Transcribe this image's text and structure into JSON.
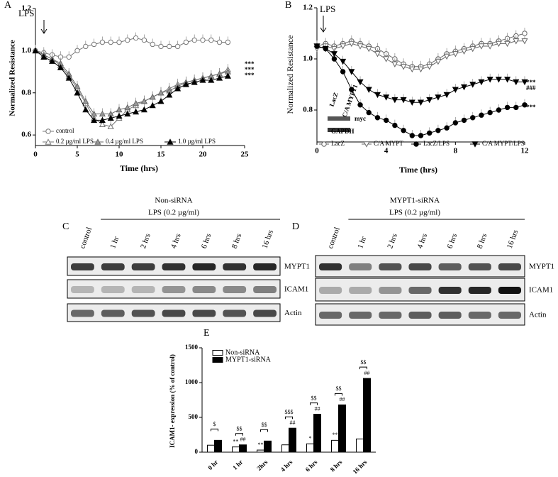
{
  "chart_data": [
    {
      "type": "line",
      "panel": "A",
      "ylabel": "Normalized Resistance",
      "xlabel": "Time (hrs)",
      "xlim": [
        0,
        25
      ],
      "xticks": [
        0,
        5,
        10,
        15,
        20,
        25
      ],
      "ylim": [
        0.55,
        1.2
      ],
      "yticks": [
        0.6,
        0.8,
        {
          "value": 1,
          "label": "1.0"
        },
        1.2
      ],
      "annotations": [
        "LPS",
        "***",
        "***",
        "***"
      ],
      "x": [
        0,
        1,
        2,
        3,
        4,
        5,
        6,
        7,
        8,
        9,
        10,
        11,
        12,
        13,
        14,
        15,
        16,
        17,
        18,
        19,
        20,
        21,
        22,
        23
      ],
      "series": [
        {
          "name": "control",
          "marker": "circle",
          "color": "#777",
          "fill": "#fff",
          "values": [
            1.0,
            0.99,
            0.98,
            0.97,
            0.97,
            1.0,
            1.02,
            1.03,
            1.04,
            1.04,
            1.04,
            1.05,
            1.06,
            1.05,
            1.03,
            1.02,
            1.02,
            1.02,
            1.04,
            1.05,
            1.05,
            1.05,
            1.04,
            1.04
          ]
        },
        {
          "name": "0.2 µg/ml LPS",
          "marker": "triangle",
          "color": "#777",
          "fill": "#fff",
          "values": [
            1.0,
            0.98,
            0.96,
            0.93,
            0.88,
            0.82,
            0.75,
            0.68,
            0.65,
            0.64,
            0.68,
            0.72,
            0.74,
            0.76,
            0.78,
            0.8,
            0.82,
            0.84,
            0.85,
            0.86,
            0.87,
            0.88,
            0.89,
            0.91
          ]
        },
        {
          "name": "0.4 µg/ml LPS",
          "marker": "triangle",
          "color": "#666",
          "fill": "#999",
          "values": [
            1.0,
            0.98,
            0.96,
            0.94,
            0.89,
            0.83,
            0.76,
            0.7,
            0.7,
            0.7,
            0.72,
            0.73,
            0.75,
            0.76,
            0.78,
            0.8,
            0.81,
            0.83,
            0.85,
            0.86,
            0.87,
            0.88,
            0.89,
            0.9
          ]
        },
        {
          "name": "1.0 µg/ml LPS",
          "marker": "triangle",
          "color": "#000",
          "fill": "#000",
          "values": [
            1.0,
            0.97,
            0.95,
            0.92,
            0.87,
            0.8,
            0.72,
            0.67,
            0.67,
            0.68,
            0.69,
            0.7,
            0.71,
            0.72,
            0.74,
            0.76,
            0.79,
            0.82,
            0.84,
            0.85,
            0.86,
            0.86,
            0.87,
            0.88
          ]
        }
      ]
    },
    {
      "type": "line",
      "panel": "B",
      "ylabel": "Normalized Resistance",
      "xlabel": "Time (hrs)",
      "xlim": [
        0,
        12
      ],
      "xticks": [
        0,
        4,
        8,
        12
      ],
      "ylim": [
        0.675,
        1.2
      ],
      "yticks": [
        0.8,
        {
          "value": 1,
          "label": "1.0"
        },
        1.2
      ],
      "annotations": [
        "LPS",
        "***",
        "###",
        "***"
      ],
      "inset": [
        "LacZ",
        "C/A MYPT1",
        "myc",
        "GAPDH"
      ],
      "x": [
        0,
        0.5,
        1,
        1.5,
        2,
        2.5,
        3,
        3.5,
        4,
        4.5,
        5,
        5.5,
        6,
        6.5,
        7,
        7.5,
        8,
        8.5,
        9,
        9.5,
        10,
        10.5,
        11,
        11.5,
        12
      ],
      "series": [
        {
          "name": "LacZ",
          "marker": "circle",
          "color": "#666",
          "fill": "#fff",
          "values": [
            1.05,
            1.06,
            1.05,
            1.06,
            1.07,
            1.06,
            1.05,
            1.04,
            1.02,
            1.0,
            0.98,
            0.97,
            0.97,
            0.98,
            1.0,
            1.02,
            1.03,
            1.04,
            1.05,
            1.06,
            1.06,
            1.07,
            1.08,
            1.09,
            1.1
          ]
        },
        {
          "name": "C/A MYPT",
          "marker": "triangle-down",
          "color": "#666",
          "fill": "#fff",
          "values": [
            1.04,
            1.05,
            1.04,
            1.05,
            1.06,
            1.05,
            1.04,
            1.02,
            1.0,
            0.98,
            0.97,
            0.96,
            0.96,
            0.97,
            0.99,
            1.01,
            1.02,
            1.03,
            1.04,
            1.05,
            1.05,
            1.06,
            1.06,
            1.07,
            1.07
          ]
        },
        {
          "name": "LacZ/LPS",
          "marker": "circle",
          "color": "#000",
          "fill": "#000",
          "values": [
            1.05,
            1.04,
            1.0,
            0.95,
            0.88,
            0.82,
            0.79,
            0.77,
            0.76,
            0.74,
            0.72,
            0.7,
            0.7,
            0.71,
            0.72,
            0.73,
            0.75,
            0.76,
            0.77,
            0.78,
            0.79,
            0.8,
            0.81,
            0.81,
            0.82
          ]
        },
        {
          "name": "C/A MYPT/LPS",
          "marker": "triangle-down",
          "color": "#000",
          "fill": "#000",
          "values": [
            1.05,
            1.04,
            1.02,
            0.99,
            0.95,
            0.91,
            0.88,
            0.86,
            0.85,
            0.84,
            0.84,
            0.83,
            0.83,
            0.84,
            0.85,
            0.86,
            0.88,
            0.89,
            0.9,
            0.91,
            0.92,
            0.92,
            0.92,
            0.91,
            0.91
          ]
        }
      ]
    },
    {
      "type": "bar",
      "panel": "E",
      "ylabel": "ICAM1- expression  (% of control)",
      "ylim": [
        0,
        1500
      ],
      "yticks": [
        0,
        500,
        1000,
        1500
      ],
      "categories": [
        "0 hr",
        "1 hr",
        "2hrs",
        "4 hrs",
        "6 hrs",
        "8 hrs",
        "16 hrs"
      ],
      "series": [
        {
          "name": "Non-siRNA",
          "color": "#fff",
          "values": [
            100,
            75,
            30,
            105,
            120,
            170,
            190
          ],
          "marks": [
            null,
            "**",
            "**",
            null,
            "*",
            "**",
            null
          ]
        },
        {
          "name": "MYPT1-siRNA",
          "color": "#000",
          "values": [
            170,
            105,
            160,
            345,
            545,
            680,
            1060
          ],
          "marks": [
            null,
            "##",
            null,
            "##",
            "##",
            "##",
            "##"
          ]
        }
      ],
      "brackets": [
        "$",
        "$$",
        "$$",
        "$$$",
        "$$",
        "$$",
        "$$"
      ]
    }
  ],
  "blots": [
    {
      "panel": "C",
      "title": "Non-siRNA",
      "treatment": "LPS (0.2 µg/ml)",
      "lanes": [
        "control",
        "1 hr",
        "2 hrs",
        "4 hrs",
        "6 hrs",
        "8 hrs",
        "16 hrs"
      ],
      "rows": [
        "MYPT1",
        "ICAM1",
        "Actin"
      ]
    },
    {
      "panel": "D",
      "title": "MYPT1-siRNA",
      "treatment": "LPS (0.2 µg/ml)",
      "lanes": [
        "control",
        "1 hr",
        "2 hrs",
        "4 hrs",
        "6 hrs",
        "8 hrs",
        "16 hrs"
      ],
      "rows": [
        "MYPT1",
        "ICAM1",
        "Actin"
      ]
    }
  ]
}
